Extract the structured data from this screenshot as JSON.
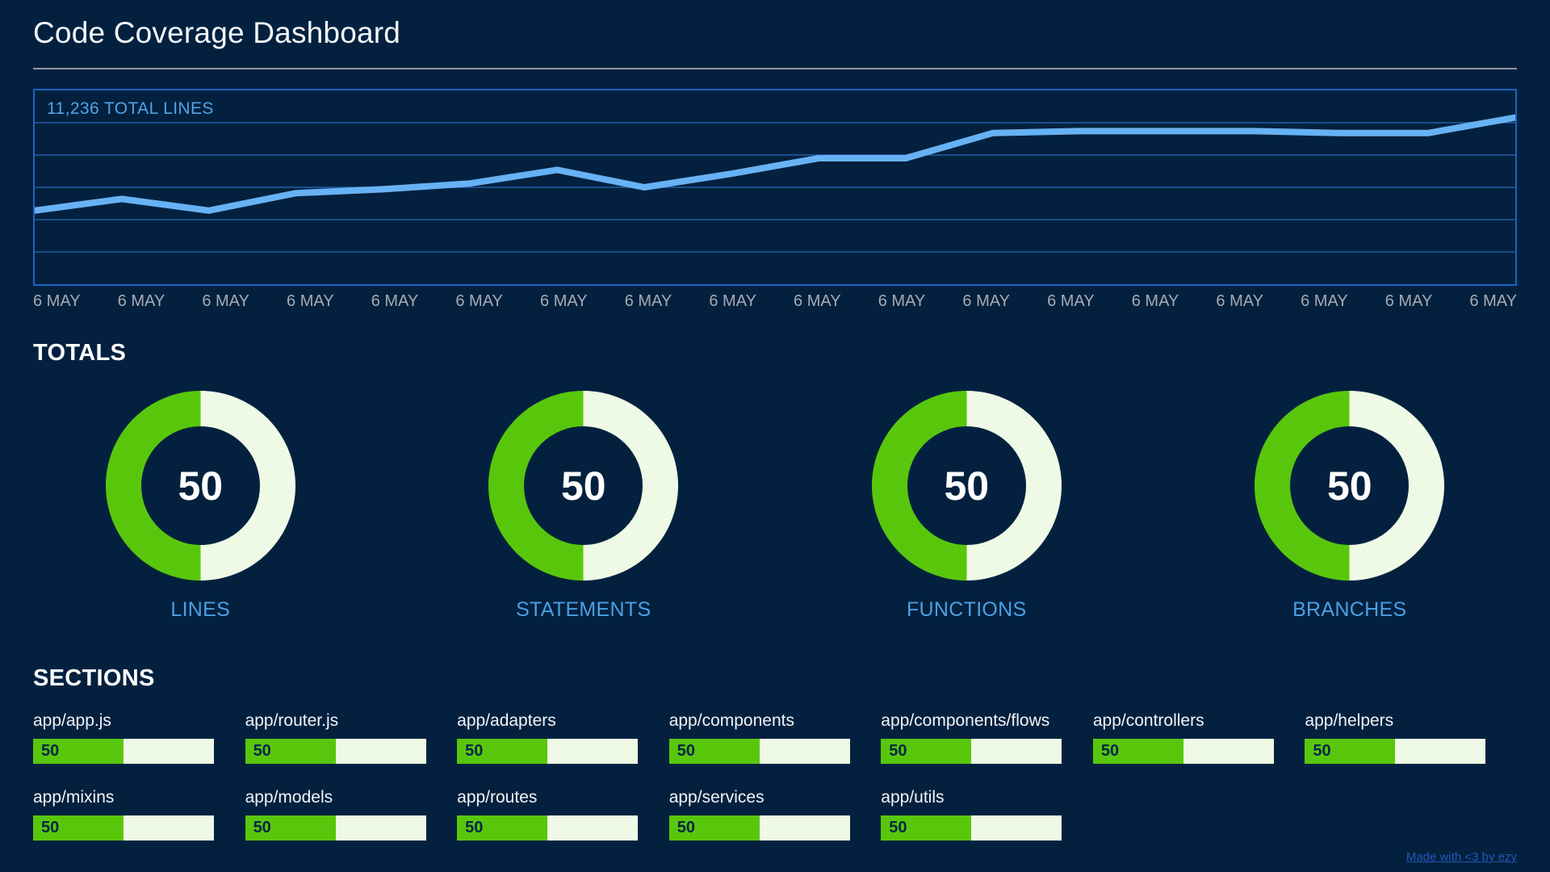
{
  "header": {
    "title": "Code Coverage Dashboard"
  },
  "chart_data": [
    {
      "id": "total-lines-trend",
      "type": "line",
      "title": "11,236 TOTAL LINES",
      "x_labels": [
        "6 MAY",
        "6 MAY",
        "6 MAY",
        "6 MAY",
        "6 MAY",
        "6 MAY",
        "6 MAY",
        "6 MAY",
        "6 MAY",
        "6 MAY",
        "6 MAY",
        "6 MAY",
        "6 MAY",
        "6 MAY",
        "6 MAY",
        "6 MAY",
        "6 MAY",
        "6 MAY"
      ],
      "series": [
        {
          "name": "Total lines",
          "values": [
            38,
            44,
            38,
            47,
            49,
            52,
            59,
            50,
            57,
            65,
            65,
            78,
            79,
            79,
            79,
            78,
            78,
            86
          ]
        }
      ],
      "ylim": [
        0,
        100
      ],
      "y_axis": "unlabeled; values estimated as percent of plot height",
      "grid": "horizontal",
      "legend": "none"
    },
    {
      "id": "totals-donuts",
      "type": "pie",
      "title": "TOTALS",
      "categories": [
        "LINES",
        "STATEMENTS",
        "FUNCTIONS",
        "BRANCHES"
      ],
      "values": [
        50,
        50,
        50,
        50
      ],
      "unit": "%"
    },
    {
      "id": "sections-bars",
      "type": "bar",
      "title": "SECTIONS",
      "categories": [
        "app/app.js",
        "app/router.js",
        "app/adapters",
        "app/components",
        "app/components/flows",
        "app/controllers",
        "app/helpers",
        "app/mixins",
        "app/models",
        "app/routes",
        "app/services",
        "app/utils"
      ],
      "values": [
        50,
        50,
        50,
        50,
        50,
        50,
        50,
        50,
        50,
        50,
        50,
        50
      ],
      "xlim": [
        0,
        100
      ],
      "unit": "%"
    }
  ],
  "footer": {
    "link_label": "Made with <3 by ezy"
  },
  "colors": {
    "background": "#03213f",
    "panel_border": "#2062c0",
    "grid_line": "#1d4d8d",
    "data_line": "#67b2f4",
    "chart_label_blue": "#51a3e7",
    "tick_gray": "#a6aab1",
    "heading_white": "#ffffff",
    "green": "#58c70c",
    "pale_green": "#eefae5",
    "bar_value_navy": "#052647",
    "donut_label_blue": "#4aa0e4",
    "link_blue": "#2258b8"
  }
}
